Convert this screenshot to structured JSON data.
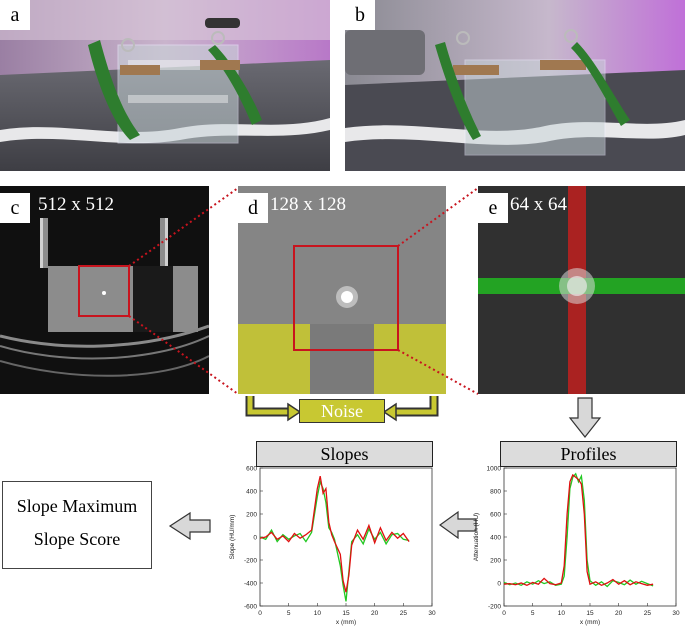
{
  "panels": {
    "a": {
      "letter": "a"
    },
    "b": {
      "letter": "b"
    },
    "c": {
      "letter": "c",
      "resolution": "512 x 512"
    },
    "d": {
      "letter": "d",
      "resolution": "128 x 128"
    },
    "e": {
      "letter": "e",
      "resolution": "64 x 64"
    }
  },
  "noise_label": "Noise",
  "slopes_header": "Slopes",
  "profiles_header": "Profiles",
  "result": {
    "line1": "Slope Maximum",
    "line2": "Slope Score"
  },
  "colors": {
    "roi": "#c8141e",
    "noise": "#c8c832",
    "red_profile": "#e01010",
    "green_profile": "#22c822"
  },
  "chart_data": [
    {
      "type": "line",
      "ylabel": "Slope (HU/mm)",
      "xlabel": "x (mm)",
      "xlim": [
        0,
        30
      ],
      "ylim": [
        -600,
        600
      ],
      "xticks": [
        0,
        5,
        10,
        15,
        20,
        25,
        30
      ],
      "yticks": [
        -600,
        -400,
        -200,
        0,
        200,
        400,
        600
      ],
      "series": [
        {
          "values_x": [
            0,
            1,
            2,
            3,
            4,
            5,
            6,
            7,
            8,
            9,
            10,
            10.5,
            11,
            11.5,
            12,
            12.5,
            13,
            14,
            14.5,
            15,
            15.5,
            16,
            17,
            18,
            19,
            20,
            21,
            22,
            23,
            24,
            25,
            26
          ],
          "values_y": [
            -10,
            0,
            40,
            -20,
            10,
            -40,
            30,
            -10,
            20,
            60,
            420,
            530,
            380,
            420,
            130,
            20,
            -40,
            -150,
            -380,
            -480,
            -330,
            -70,
            60,
            -20,
            100,
            -50,
            80,
            -30,
            40,
            -10,
            30,
            -40
          ]
        },
        {
          "values_x": [
            0,
            1,
            2,
            3,
            4,
            5,
            6,
            7,
            8,
            9,
            10,
            10.5,
            11,
            11.5,
            12,
            12.5,
            13,
            14,
            14.5,
            15,
            15.5,
            16,
            17,
            18,
            19,
            20,
            21,
            22,
            23,
            24,
            25,
            26
          ],
          "values_y": [
            0,
            -20,
            60,
            -40,
            20,
            -20,
            10,
            30,
            -40,
            40,
            350,
            480,
            420,
            300,
            80,
            40,
            -20,
            -250,
            -420,
            -560,
            -300,
            -40,
            20,
            -60,
            70,
            -20,
            40,
            -60,
            20,
            30,
            -20,
            -30
          ]
        }
      ]
    },
    {
      "type": "line",
      "ylabel": "Attenuation (HU)",
      "xlabel": "x (mm)",
      "xlim": [
        0,
        30
      ],
      "ylim": [
        -200,
        1000
      ],
      "xticks": [
        0,
        5,
        10,
        15,
        20,
        25,
        30
      ],
      "yticks": [
        -200,
        0,
        200,
        400,
        600,
        800,
        1000
      ],
      "series": [
        {
          "values_x": [
            0,
            1,
            2,
            3,
            4,
            5,
            6,
            7,
            8,
            9,
            10,
            10.5,
            11,
            11.5,
            12,
            12.5,
            13,
            13.5,
            14,
            14.5,
            15,
            16,
            17,
            18,
            19,
            20,
            21,
            22,
            23,
            24,
            25,
            26
          ],
          "values_y": [
            -10,
            -5,
            -15,
            0,
            -20,
            5,
            -10,
            40,
            -5,
            -15,
            0,
            150,
            600,
            880,
            940,
            920,
            900,
            860,
            600,
            100,
            -10,
            10,
            -20,
            0,
            30,
            -10,
            20,
            -15,
            10,
            -5,
            -20,
            -10
          ]
        },
        {
          "values_x": [
            0,
            1,
            2,
            3,
            4,
            5,
            6,
            7,
            8,
            9,
            10,
            10.5,
            11,
            11.5,
            12,
            12.5,
            13,
            13.5,
            14,
            14.5,
            15,
            16,
            17,
            18,
            19,
            20,
            21,
            22,
            23,
            24,
            25,
            26
          ],
          "values_y": [
            5,
            -15,
            0,
            -20,
            10,
            -10,
            20,
            -5,
            10,
            -20,
            -10,
            60,
            400,
            820,
            920,
            950,
            880,
            930,
            720,
            200,
            20,
            -20,
            10,
            -30,
            20,
            5,
            -15,
            25,
            -10,
            15,
            -5,
            -25
          ]
        }
      ]
    }
  ]
}
